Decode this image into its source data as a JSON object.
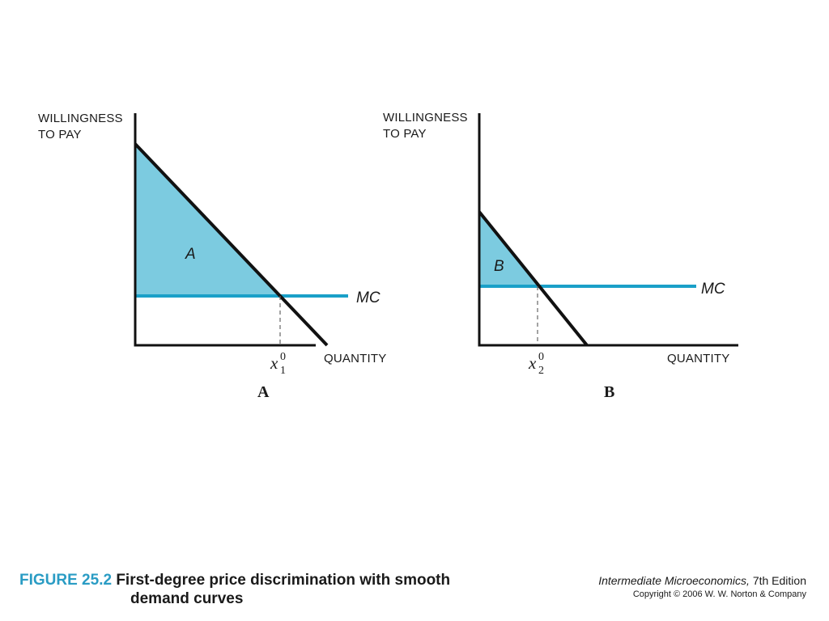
{
  "panels": [
    {
      "id": "A",
      "y_axis_label_line1": "WILLINGNESS",
      "y_axis_label_line2": "TO PAY",
      "x_axis_label": "QUANTITY",
      "mc_label": "MC",
      "area_label": "A",
      "quantity_symbol": "x",
      "quantity_subscript": "1",
      "quantity_superscript": "0",
      "panel_label": "A"
    },
    {
      "id": "B",
      "y_axis_label_line1": "WILLINGNESS",
      "y_axis_label_line2": "TO PAY",
      "x_axis_label": "QUANTITY",
      "mc_label": "MC",
      "area_label": "B",
      "quantity_symbol": "x",
      "quantity_subscript": "2",
      "quantity_superscript": "0",
      "panel_label": "B"
    }
  ],
  "caption": {
    "figure_number": "FIGURE 25.2",
    "title_line1": "First-degree price discrimination with smooth",
    "title_line2": "demand curves"
  },
  "credit": {
    "book_title": "Intermediate Microeconomics,",
    "edition": " 7th Edition",
    "copyright": "Copyright © 2006 W. W. Norton & Company"
  },
  "colors": {
    "surplus_fill": "#7ccbe0",
    "mc_line": "#1aa0c8",
    "axis": "#111111",
    "demand": "#111111",
    "accent_text": "#2a9cc4"
  }
}
